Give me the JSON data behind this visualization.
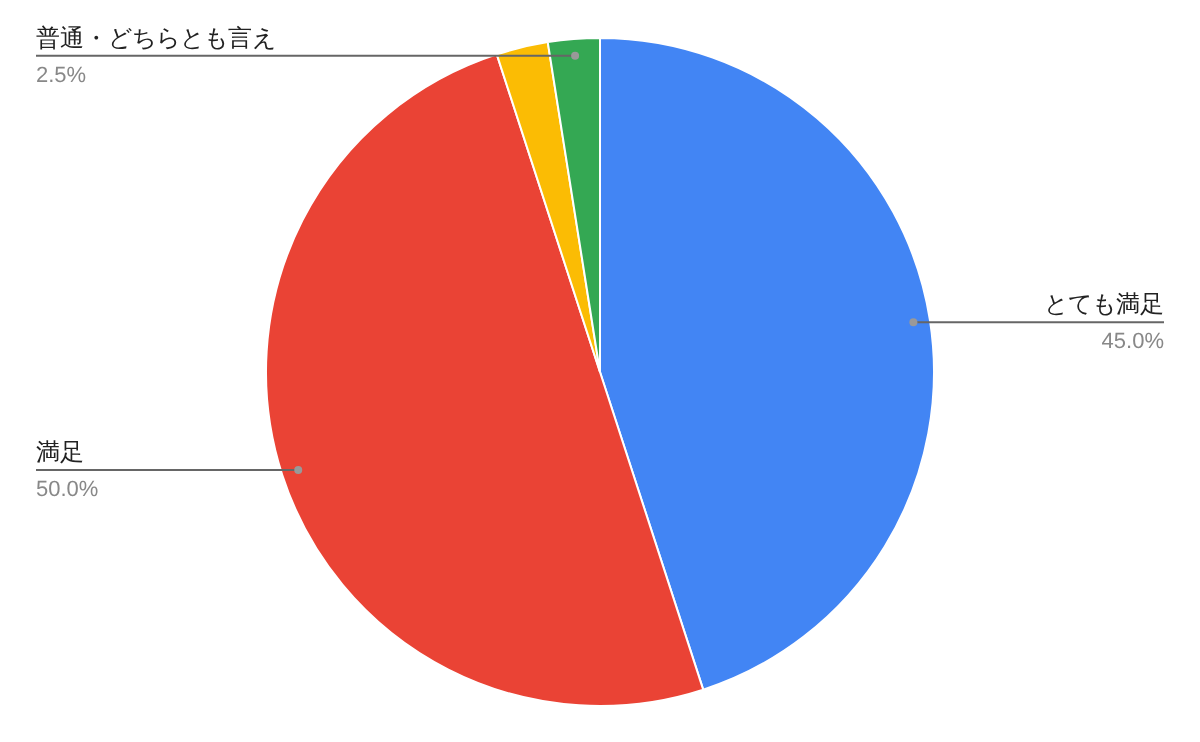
{
  "chart_data": {
    "type": "pie",
    "categories": [
      "とても満足",
      "満足",
      null,
      "普通・どちらとも言え"
    ],
    "values": [
      45.0,
      50.0,
      2.5,
      2.5
    ],
    "colors": [
      "#4285f4",
      "#ea4335",
      "#fbbc04",
      "#34a853"
    ],
    "value_labels": [
      "45.0%",
      "50.0%",
      null,
      "2.5%"
    ]
  }
}
